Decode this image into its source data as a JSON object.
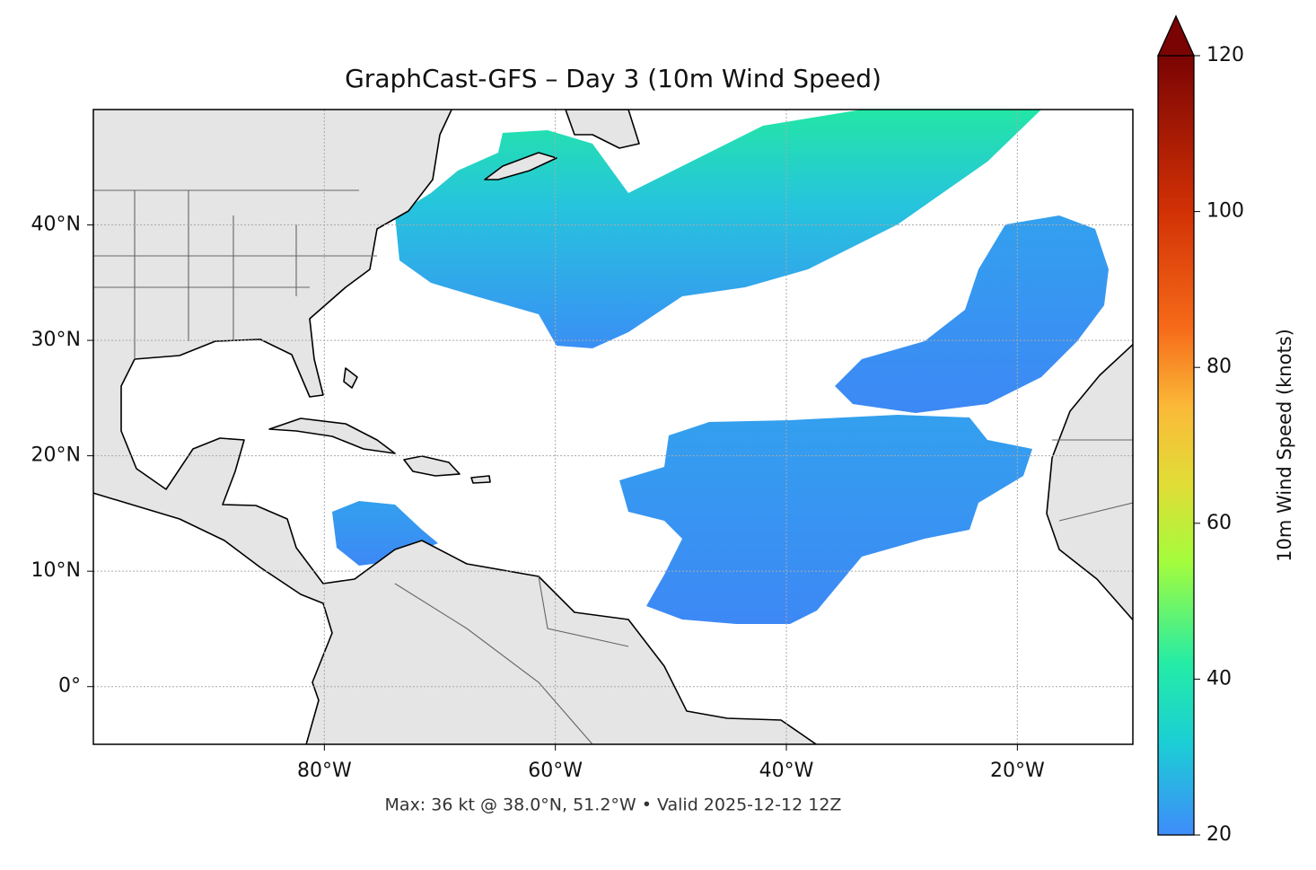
{
  "map": {
    "title": "GraphCast-GFS – Day 3 (10m Wind Speed)",
    "footer": "Max: 36 kt @ 38.0°N, 51.2°W • Valid 2025-12-12 12Z",
    "xlim": [
      -100,
      -10
    ],
    "ylim": [
      -5,
      50
    ],
    "xticks": [
      {
        "value": -80,
        "label": "80°W"
      },
      {
        "value": -60,
        "label": "60°W"
      },
      {
        "value": -40,
        "label": "40°W"
      },
      {
        "value": -20,
        "label": "20°W"
      }
    ],
    "yticks": [
      {
        "value": 0,
        "label": "0°"
      },
      {
        "value": 10,
        "label": "10°N"
      },
      {
        "value": 20,
        "label": "20°N"
      },
      {
        "value": 30,
        "label": "30°N"
      },
      {
        "value": 40,
        "label": "40°N"
      }
    ],
    "grid": true,
    "colorbar": {
      "label": "10m Wind Speed (knots)",
      "lim": [
        20,
        120
      ],
      "ticks": [
        20,
        40,
        60,
        80,
        100,
        120
      ]
    }
  }
}
